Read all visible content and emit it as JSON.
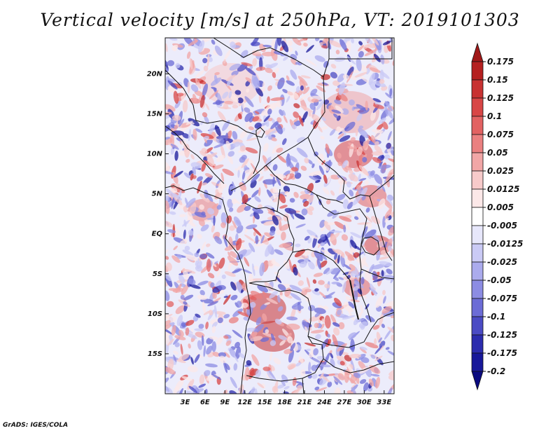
{
  "title": "Vertical velocity [m/s] at 250hPa, VT: 2019101303",
  "credit": "GrADS: IGES/COLA",
  "map": {
    "lat_ticks": [
      "20N",
      "15N",
      "10N",
      "5N",
      "EQ",
      "5S",
      "10S",
      "15S"
    ],
    "lat_values": [
      20,
      15,
      10,
      5,
      0,
      -5,
      -10,
      -15
    ],
    "lon_ticks": [
      "3E",
      "6E",
      "9E",
      "12E",
      "15E",
      "18E",
      "21E",
      "24E",
      "27E",
      "30E",
      "33E"
    ],
    "lon_values": [
      3,
      6,
      9,
      12,
      15,
      18,
      21,
      24,
      27,
      30,
      33
    ],
    "lon_range": [
      0,
      34.5
    ],
    "lat_range": [
      -20,
      24.5
    ]
  },
  "colorbar": {
    "labels": [
      "0.175",
      "0.15",
      "0.125",
      "0.1",
      "0.075",
      "0.05",
      "0.025",
      "0.0125",
      "0.005",
      "-0.005",
      "-0.0125",
      "-0.025",
      "-0.05",
      "-0.075",
      "-0.1",
      "-0.125",
      "-0.175",
      "-0.2"
    ],
    "colors": [
      "#a01818",
      "#b52020",
      "#c83232",
      "#d84646",
      "#e26262",
      "#ea8080",
      "#f1a6a6",
      "#f7caca",
      "#fce8e8",
      "#ffffff",
      "#e7e7fb",
      "#cacaf5",
      "#ababed",
      "#8c8ce3",
      "#6c6cd6",
      "#4b4bc4",
      "#2c2cae",
      "#18189a",
      "#0a0a80"
    ]
  }
}
